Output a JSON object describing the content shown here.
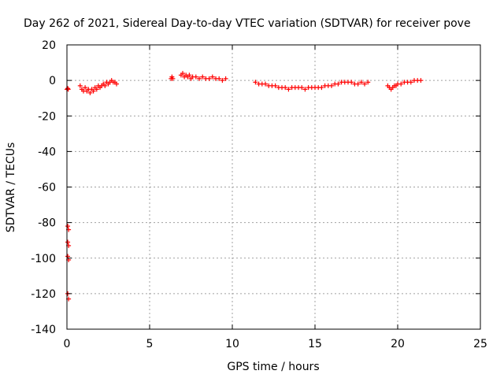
{
  "chart_data": {
    "type": "scatter",
    "title": "Day 262 of 2021, Sidereal Day-to-day VTEC variation (SDTVAR) for receiver pove",
    "xlabel": "GPS time / hours",
    "ylabel": "SDTVAR / TECUs",
    "xlim": [
      0,
      25
    ],
    "ylim": [
      -140,
      20
    ],
    "xticks": [
      "0",
      "5",
      "10",
      "15",
      "20",
      "25"
    ],
    "yticks": [
      "20",
      "0",
      "-20",
      "-40",
      "-60",
      "-80",
      "-100",
      "-120",
      "-140"
    ],
    "grid": true,
    "marker_color": "#ff0000",
    "marker": "plus",
    "series": [
      {
        "values": [
          [
            0.0,
            -5
          ],
          [
            0.05,
            -4.5
          ],
          [
            0.08,
            -5
          ],
          [
            0.05,
            -82
          ],
          [
            0.1,
            -84
          ],
          [
            0.05,
            -91
          ],
          [
            0.1,
            -93
          ],
          [
            0.05,
            -99
          ],
          [
            0.1,
            -101
          ],
          [
            0.05,
            -120
          ],
          [
            0.1,
            -123
          ],
          [
            0.8,
            -3
          ],
          [
            0.9,
            -5
          ],
          [
            1.0,
            -6
          ],
          [
            1.1,
            -4
          ],
          [
            1.2,
            -6
          ],
          [
            1.3,
            -5
          ],
          [
            1.4,
            -7
          ],
          [
            1.5,
            -5
          ],
          [
            1.6,
            -6
          ],
          [
            1.7,
            -4
          ],
          [
            1.8,
            -5
          ],
          [
            1.9,
            -3
          ],
          [
            2.0,
            -4
          ],
          [
            2.1,
            -3
          ],
          [
            2.2,
            -2
          ],
          [
            2.3,
            -3
          ],
          [
            2.4,
            -1
          ],
          [
            2.5,
            -2
          ],
          [
            2.6,
            -1
          ],
          [
            2.7,
            0
          ],
          [
            2.8,
            -1
          ],
          [
            2.9,
            -1
          ],
          [
            3.0,
            -2
          ],
          [
            6.3,
            1
          ],
          [
            6.35,
            2
          ],
          [
            6.4,
            1
          ],
          [
            6.9,
            3
          ],
          [
            7.0,
            4
          ],
          [
            7.1,
            2
          ],
          [
            7.2,
            3
          ],
          [
            7.3,
            2
          ],
          [
            7.4,
            3
          ],
          [
            7.5,
            1
          ],
          [
            7.6,
            2
          ],
          [
            7.8,
            2
          ],
          [
            8.0,
            1
          ],
          [
            8.2,
            2
          ],
          [
            8.4,
            1
          ],
          [
            8.6,
            1
          ],
          [
            8.8,
            2
          ],
          [
            9.0,
            1
          ],
          [
            9.2,
            1
          ],
          [
            9.4,
            0
          ],
          [
            9.6,
            1
          ],
          [
            11.4,
            -1
          ],
          [
            11.6,
            -2
          ],
          [
            11.8,
            -2
          ],
          [
            12.0,
            -2
          ],
          [
            12.2,
            -3
          ],
          [
            12.4,
            -3
          ],
          [
            12.6,
            -3
          ],
          [
            12.8,
            -4
          ],
          [
            13.0,
            -4
          ],
          [
            13.2,
            -4
          ],
          [
            13.4,
            -5
          ],
          [
            13.6,
            -4
          ],
          [
            13.8,
            -4
          ],
          [
            14.0,
            -4
          ],
          [
            14.2,
            -4
          ],
          [
            14.4,
            -5
          ],
          [
            14.6,
            -4
          ],
          [
            14.8,
            -4
          ],
          [
            15.0,
            -4
          ],
          [
            15.2,
            -4
          ],
          [
            15.4,
            -4
          ],
          [
            15.6,
            -3
          ],
          [
            15.8,
            -3
          ],
          [
            16.0,
            -3
          ],
          [
            16.2,
            -2
          ],
          [
            16.4,
            -2
          ],
          [
            16.6,
            -1
          ],
          [
            16.8,
            -1
          ],
          [
            17.0,
            -1
          ],
          [
            17.2,
            -1
          ],
          [
            17.4,
            -2
          ],
          [
            17.6,
            -2
          ],
          [
            17.8,
            -1
          ],
          [
            18.0,
            -2
          ],
          [
            18.2,
            -1
          ],
          [
            19.4,
            -3
          ],
          [
            19.5,
            -4
          ],
          [
            19.6,
            -5
          ],
          [
            19.7,
            -4
          ],
          [
            19.8,
            -3
          ],
          [
            19.9,
            -3
          ],
          [
            20.0,
            -2
          ],
          [
            20.2,
            -2
          ],
          [
            20.4,
            -1
          ],
          [
            20.6,
            -1
          ],
          [
            20.8,
            -1
          ],
          [
            21.0,
            0
          ],
          [
            21.2,
            0
          ],
          [
            21.4,
            0
          ]
        ]
      }
    ]
  }
}
